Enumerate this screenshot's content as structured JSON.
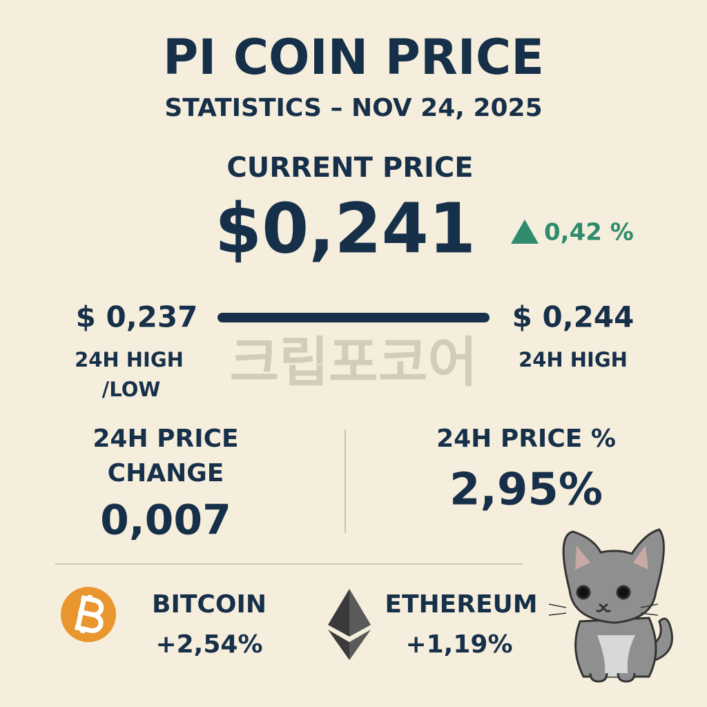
{
  "header": {
    "title": "PI COIN PRICE",
    "subtitle": "STATISTICS – NOV 24, 2025"
  },
  "current": {
    "label": "CURRENT PRICE",
    "price": "$0,241",
    "change": "0,42 %"
  },
  "range": {
    "low": "$ 0,237",
    "low_label": [
      "24H HIGH",
      "/LOW"
    ],
    "high": "$ 0,244",
    "high_label": "24H HIGH"
  },
  "watermark": "크립포코어",
  "price_change": {
    "label": [
      "24H PRICE",
      "CHANGE"
    ],
    "value": "0,007"
  },
  "price_percent": {
    "label": "24H PRICE %",
    "value": "2,95%"
  },
  "coins": [
    {
      "name": "BITCOIN",
      "change": "+2,54%"
    },
    {
      "name": "ETHEREUM",
      "change": "+1,19%"
    }
  ]
}
